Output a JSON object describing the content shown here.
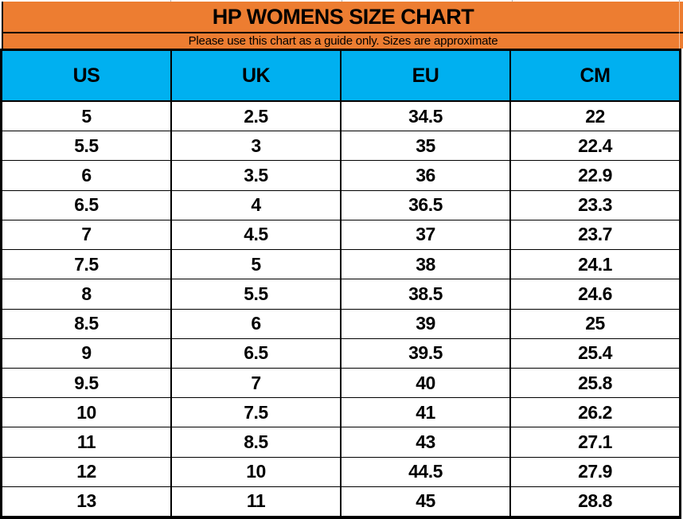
{
  "banner": {
    "title": "HP WOMENS SIZE CHART",
    "subtitle": "Please use this chart as a guide only. Sizes are approximate"
  },
  "chart_data": {
    "type": "table",
    "title": "HP WOMENS SIZE CHART",
    "subtitle": "Please use this chart as a guide only. Sizes are approximate",
    "columns": [
      "US",
      "UK",
      "EU",
      "CM"
    ],
    "rows": [
      [
        "5",
        "2.5",
        "34.5",
        "22"
      ],
      [
        "5.5",
        "3",
        "35",
        "22.4"
      ],
      [
        "6",
        "3.5",
        "36",
        "22.9"
      ],
      [
        "6.5",
        "4",
        "36.5",
        "23.3"
      ],
      [
        "7",
        "4.5",
        "37",
        "23.7"
      ],
      [
        "7.5",
        "5",
        "38",
        "24.1"
      ],
      [
        "8",
        "5.5",
        "38.5",
        "24.6"
      ],
      [
        "8.5",
        "6",
        "39",
        "25"
      ],
      [
        "9",
        "6.5",
        "39.5",
        "25.4"
      ],
      [
        "9.5",
        "7",
        "40",
        "25.8"
      ],
      [
        "10",
        "7.5",
        "41",
        "26.2"
      ],
      [
        "11",
        "8.5",
        "43",
        "27.1"
      ],
      [
        "12",
        "10",
        "44.5",
        "27.9"
      ],
      [
        "13",
        "11",
        "45",
        "28.8"
      ]
    ]
  },
  "colors": {
    "orange": "#ED7D31",
    "blue": "#00B0F0",
    "border": "#000000",
    "gridline": "#B5B5B5"
  }
}
